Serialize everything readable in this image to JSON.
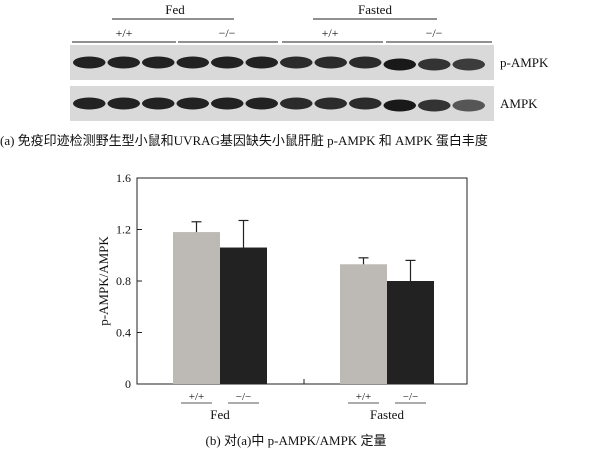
{
  "panel_a": {
    "groups": [
      {
        "label": "Fed",
        "genotypes": [
          "+/+",
          "−/−"
        ]
      },
      {
        "label": "Fasted",
        "genotypes": [
          "+/+",
          "−/−"
        ]
      }
    ],
    "blots": [
      {
        "label": "p-AMPK",
        "intensity": [
          0.95,
          0.95,
          0.95,
          0.95,
          0.95,
          0.95,
          0.9,
          0.9,
          0.9,
          1.0,
          0.85,
          0.8
        ]
      },
      {
        "label": "AMPK",
        "intensity": [
          0.95,
          0.95,
          0.95,
          0.95,
          0.95,
          0.95,
          0.9,
          0.9,
          0.9,
          1.0,
          0.85,
          0.65
        ]
      }
    ],
    "caption": "(a) 免疫印迹检测野生型小鼠和UVRAG基因缺失小鼠肝脏 p-AMPK 和 AMPK 蛋白丰度"
  },
  "panel_b": {
    "caption": "(b) 对(a)中 p-AMPK/AMPK 定量"
  },
  "chart_data": {
    "type": "bar",
    "ylabel": "p-AMPK/AMPK",
    "ylim": [
      0,
      1.6
    ],
    "yticks": [
      "0",
      "0.4",
      "0.8",
      "1.2",
      "1.6"
    ],
    "groups": [
      "Fed",
      "Fasted"
    ],
    "sublabels": [
      "+/+",
      "−/−"
    ],
    "series": [
      {
        "name": "+/+",
        "values": [
          1.18,
          0.93
        ],
        "errors": [
          0.08,
          0.05
        ],
        "color": "#bdb9b4"
      },
      {
        "name": "−/−",
        "values": [
          1.06,
          0.8
        ],
        "errors": [
          0.21,
          0.16
        ],
        "color": "#222222"
      }
    ]
  }
}
